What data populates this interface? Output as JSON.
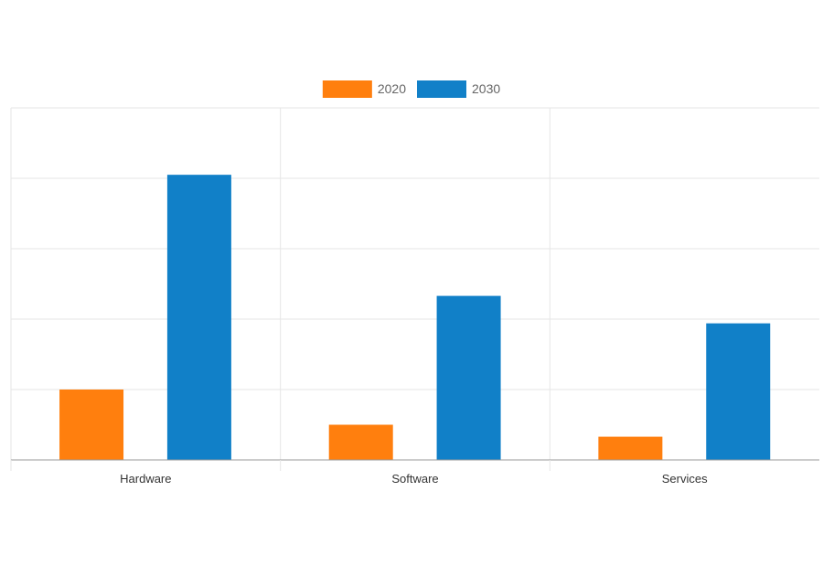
{
  "chart_data": {
    "type": "bar",
    "title": "",
    "xlabel": "",
    "ylabel": "",
    "categories": [
      "Hardware",
      "Software",
      "Services"
    ],
    "series": [
      {
        "name": "2020",
        "values": [
          10,
          5,
          3.3
        ],
        "color": "#ff7f0e"
      },
      {
        "name": "2030",
        "values": [
          40.5,
          23.3,
          19.4
        ],
        "color": "#1180c8"
      }
    ],
    "ylim": [
      0,
      50
    ],
    "y_gridlines": [
      0,
      10,
      20,
      30,
      40,
      50
    ],
    "grid": true,
    "legend_position": "top-center",
    "y_tick_labels_visible": false
  }
}
